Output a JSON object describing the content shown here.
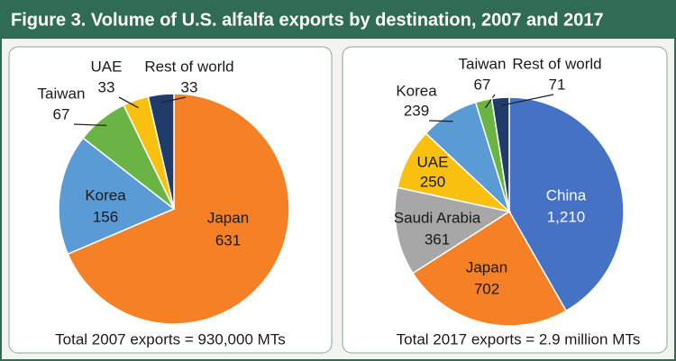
{
  "title": "Figure 3. Volume of U.S. alfalfa exports by destination, 2007 and 2017",
  "chart_data": [
    {
      "type": "pie",
      "note": "Total 2007 exports = 930,000 MTs",
      "categories": [
        "Japan",
        "Korea",
        "Taiwan",
        "UAE",
        "Rest of world"
      ],
      "values": [
        631,
        156,
        67,
        33,
        33
      ],
      "colors": [
        "#f58025",
        "#5b9bd5",
        "#6ab446",
        "#f9c00f",
        "#1f3d68"
      ]
    },
    {
      "type": "pie",
      "note": "Total 2017 exports = 2.9 million MTs",
      "categories": [
        "China",
        "Japan",
        "Saudi Arabia",
        "UAE",
        "Korea",
        "Taiwan",
        "Rest of world"
      ],
      "values": [
        1210,
        702,
        361,
        250,
        239,
        67,
        71
      ],
      "value_labels": [
        "1,210",
        "702",
        "361",
        "250",
        "239",
        "67",
        "71"
      ],
      "colors": [
        "#4572c4",
        "#f58025",
        "#a7a7a7",
        "#f9c00f",
        "#5b9bd5",
        "#6ab446",
        "#1f3d68"
      ]
    }
  ]
}
